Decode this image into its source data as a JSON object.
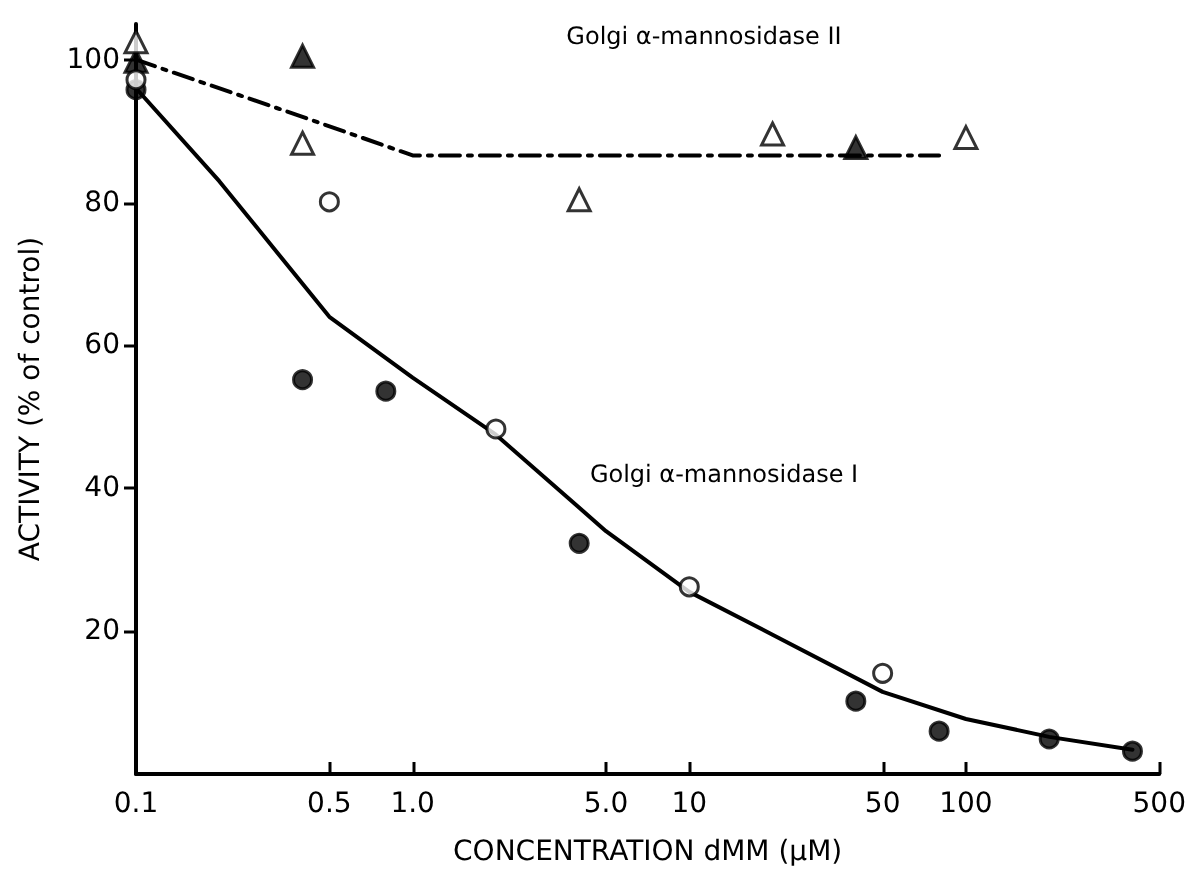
{
  "chart_data": {
    "type": "scatter",
    "xlabel": "CONCENTRATION dMM (μM)",
    "ylabel": "ACTIVITY (% of control)",
    "log": "x",
    "xlim": [
      0.1,
      500
    ],
    "xticks": [
      0.1,
      0.5,
      {
        "value": 1,
        "label": "1.0"
      },
      {
        "value": 5,
        "label": "5.0"
      },
      10,
      50,
      100,
      500
    ],
    "ylim": [
      0,
      105
    ],
    "yticks": [
      20,
      40,
      60,
      80,
      100
    ],
    "series": [
      {
        "type": "line",
        "color": "#000000",
        "marker": "none",
        "line_style": "solid",
        "x": [
          0.1,
          0.2,
          0.5,
          1,
          2,
          5,
          10,
          20,
          50,
          100,
          200,
          400
        ],
        "values": [
          96,
          83,
          64,
          55.5,
          47.5,
          34,
          25.5,
          19.5,
          11.5,
          7.7,
          5.2,
          3.4
        ]
      },
      {
        "type": "line",
        "color": "#000000",
        "marker": "none",
        "line_style": "dashed",
        "x": [
          0.1,
          0.4,
          1,
          80
        ],
        "values": [
          100,
          92,
          86.6,
          86.6
        ]
      },
      {
        "color": "#000000",
        "marker": "circle",
        "x": [
          0.1,
          0.4,
          0.8,
          4,
          40,
          80,
          200,
          400
        ],
        "values": [
          95.8,
          55.2,
          53.6,
          32.3,
          10.2,
          6,
          4.9,
          3.2
        ]
      },
      {
        "color": "#ffffff",
        "marker": "circle",
        "x": [
          0.1,
          0.5,
          2,
          10,
          50
        ],
        "values": [
          97.2,
          80.1,
          48.3,
          26.2,
          14.1
        ]
      },
      {
        "color": "#ffffff",
        "marker": "triangle",
        "x": [
          0.1,
          0.4,
          4,
          20,
          100
        ],
        "values": [
          102.5,
          88.3,
          80.4,
          89.6,
          89.1
        ]
      },
      {
        "color": "#000000",
        "marker": "triangle",
        "x": [
          0.1,
          0.4,
          40
        ],
        "values": [
          99.8,
          100.5,
          87.7
        ]
      }
    ],
    "annotations": [
      "Golgi α-mannosidase II",
      "Golgi α-mannosidase I"
    ]
  }
}
